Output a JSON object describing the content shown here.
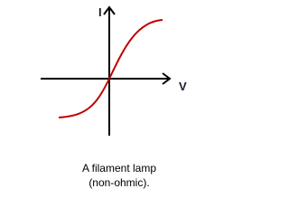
{
  "axes": {
    "y_label": "I",
    "x_label": "V"
  },
  "caption": [
    "A filament lamp",
    "(non-ohmic)."
  ]
}
